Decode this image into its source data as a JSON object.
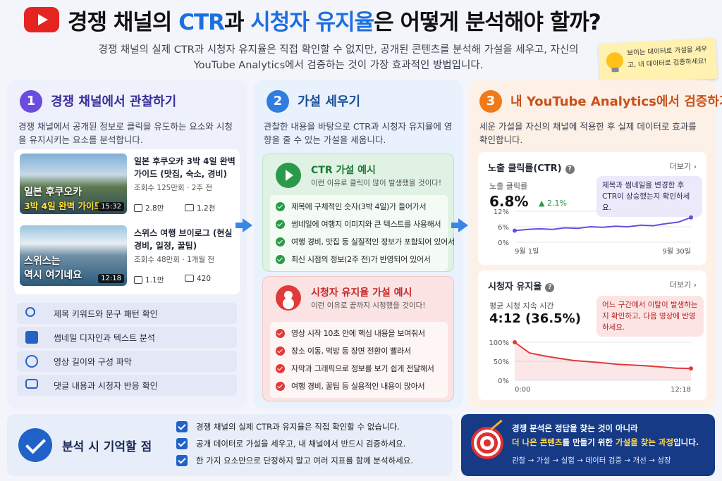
{
  "header": {
    "title_pre": "경쟁 채널의 ",
    "title_ctr": "CTR",
    "title_mid": "과 ",
    "title_ret": "시청자 유지율",
    "title_post": "은 어떻게 분석해야 할까?",
    "subtitle": "경쟁 채널의 실제 CTR과 시청자 유지율은 직접 확인할 수 없지만, 공개된 콘텐츠를 분석해 가설을 세우고, 자신의 YouTube Analytics에서 검증하는 것이 가장 효과적인 방법입니다.",
    "sticky_note": "보이는 데이터로 가설을 세우고, 내 데이터로 검증하세요!",
    "icons": {
      "logo": "youtube-play-icon",
      "sticky": "lightbulb-icon"
    }
  },
  "col1": {
    "step": "1",
    "title": "경쟁 채널에서 관찰하기",
    "desc": "경쟁 채널에서 공개된 정보로 클릭을 유도하는 요소와 시청을 유지시키는 요소를 분석합니다.",
    "videos": [
      {
        "thumb_line1": "일본 후쿠오카",
        "thumb_line2": "3박 4일 완벽 가이드",
        "duration": "15:32",
        "title": "일본 후쿠오카 3박 4일 완벽 가이드 (맛집, 숙소, 경비)",
        "meta": "조회수 125만회 · 2주 전",
        "likes": "2.8만",
        "comments": "1.2천"
      },
      {
        "thumb_line1": "스위스는",
        "thumb_line2": "역시 여기네요",
        "duration": "12:18",
        "title": "스위스 여행 브이로그 (현실 경비, 일정, 꿀팁)",
        "meta": "조회수 48만회 · 1개월 전",
        "likes": "1.1만",
        "comments": "420"
      }
    ],
    "checklist": [
      {
        "icon": "search-icon",
        "label": "제목 키워드와 문구 패턴 확인"
      },
      {
        "icon": "image-icon",
        "label": "썸네일 디자인과 텍스트 분석"
      },
      {
        "icon": "clock-icon",
        "label": "영상 길이와 구성 파악"
      },
      {
        "icon": "chat-icon",
        "label": "댓글 내용과 시청자 반응 확인"
      }
    ]
  },
  "col2": {
    "step": "2",
    "title": "가설 세우기",
    "desc": "관찰한 내용을 바탕으로 CTR과 시청자 유지율에 영향을 줄 수 있는 가설을 세웁니다.",
    "ctr": {
      "title": "CTR 가설 예시",
      "sub": "이런 이유로 클릭이 많이 발생했을 것이다!",
      "items": [
        "제목에 구체적인 숫자(3박 4일)가 들어가서",
        "썸네일에 여행지 이미지와 큰 텍스트를 사용해서",
        "여행 경비, 맛집 등 실질적인 정보가 포함되어 있어서",
        "최신 시점의 정보(2주 전)가 반영되어 있어서"
      ]
    },
    "retention": {
      "title": "시청자 유지율 가설 예시",
      "sub": "이런 이유로 끝까지 시청했을 것이다!",
      "items": [
        "영상 시작 10초 안에 핵심 내용을 보여줘서",
        "장소 이동, 먹방 등 장면 전환이 빨라서",
        "자막과 그래픽으로 정보를 보기 쉽게 전달해서",
        "여행 경비, 꿀팁 등 실용적인 내용이 많아서"
      ]
    }
  },
  "col3": {
    "step": "3",
    "title": "내 YouTube Analytics에서 검증하기",
    "desc": "세운 가설을 자신의 채널에 적용한 후 실제 데이터로 효과를 확인합니다.",
    "ctr_card": {
      "title": "노출 클릭률(CTR)",
      "more": "더보기 ›",
      "metric_label": "노출 클릭률",
      "metric_value": "6.8%",
      "delta": "▲ 2.1%",
      "bubble": "제목과 썸네일을 변경한 후 CTR이 상승했는지 확인하세요."
    },
    "ret_card": {
      "title": "시청자 유지율",
      "more": "더보기 ›",
      "metric_label": "평균 시청 지속 시간",
      "metric_value": "4:12 (36.5%)",
      "bubble": "어느 구간에서 이탈이 발생하는지 확인하고, 다음 영상에 반영하세요."
    }
  },
  "chart_data": [
    {
      "type": "line",
      "x": [
        "9월 1일",
        "",
        "",
        "",
        "",
        "",
        "",
        "",
        "",
        "",
        "",
        "",
        "",
        "",
        "9월 30일"
      ],
      "values": [
        4.5,
        5.0,
        5.2,
        5.0,
        5.6,
        5.4,
        6.0,
        5.8,
        6.2,
        6.0,
        6.6,
        6.4,
        7.2,
        7.8,
        9.6
      ],
      "ylim": [
        0,
        12
      ],
      "yticks": [
        "12%",
        "6%",
        "0%"
      ],
      "xticks": [
        "9월 1일",
        "9월 30일"
      ],
      "color": "#6a4ce0"
    },
    {
      "type": "area",
      "x": [
        "0:00",
        "",
        "",
        "",
        "",
        "",
        "",
        "",
        "",
        "",
        "",
        "",
        "12:18"
      ],
      "values": [
        100,
        72,
        64,
        58,
        52,
        49,
        46,
        42,
        40,
        38,
        35,
        32,
        31
      ],
      "ylim": [
        0,
        100
      ],
      "yticks": [
        "100%",
        "50%",
        "0%"
      ],
      "xticks": [
        "0:00",
        "12:18"
      ],
      "color": "#e03a3a"
    }
  ],
  "bottom": {
    "remember_title": "분석 시 기억할 점",
    "items": [
      "경쟁 채널의 실제 CTR과 유지율은 직접 확인할 수 없습니다.",
      "공개 데이터로 가설을 세우고, 내 채널에서 반드시 검증하세요.",
      "한 가지 요소만으로 단정하지 말고 여러 지표를 함께 분석하세요."
    ],
    "right_line1": "경쟁 분석은 정답을 찾는 것이 아니라",
    "right_line2_a": "더 나은 콘텐츠",
    "right_line2_b": "를 만들기 위한 ",
    "right_line2_c": "가설을 찾는 과정",
    "right_line2_d": "입니다.",
    "right_flow": "관찰 → 가설 → 실험 → 데이터 검증 → 개선 → 성장"
  },
  "colors": {
    "accent_blue": "#1c6fe0",
    "youtube_red": "#e52420"
  }
}
